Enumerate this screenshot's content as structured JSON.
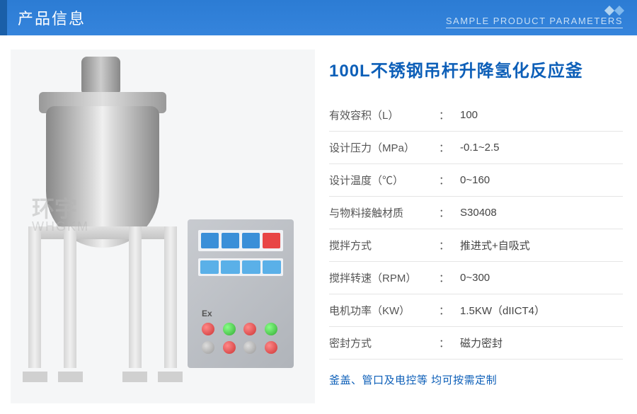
{
  "header": {
    "title": "产品信息",
    "subtitle": "SAMPLE PRODUCT PARAMETERS",
    "bg_color": "#3584dc",
    "bar_color": "#1a5fa8"
  },
  "product": {
    "title": "100L不锈钢吊杆升降氢化反应釜",
    "title_color": "#0d5fb8",
    "watermark_main": "环宇",
    "watermark_sub": "WHGKM"
  },
  "specs": [
    {
      "label": "有效容积（L）",
      "value": "100"
    },
    {
      "label": "设计压力（MPa）",
      "value": "-0.1~2.5"
    },
    {
      "label": "设计温度（℃）",
      "value": "0~160"
    },
    {
      "label": "与物料接触材质",
      "value": "S30408"
    },
    {
      "label": "搅拌方式",
      "value": "推进式+自吸式"
    },
    {
      "label": "搅拌转速（RPM）",
      "value": "0~300"
    },
    {
      "label": "电机功率（KW）",
      "value": "1.5KW（dIICT4）"
    },
    {
      "label": "密封方式",
      "value": "磁力密封"
    }
  ],
  "footer_note": "釜盖、管口及电控等 均可按需定制",
  "colors": {
    "text_label": "#555555",
    "text_value": "#444444",
    "border": "#e5e5e5",
    "accent": "#0d5fb8"
  },
  "control_box": {
    "ex_label": "Ex"
  }
}
